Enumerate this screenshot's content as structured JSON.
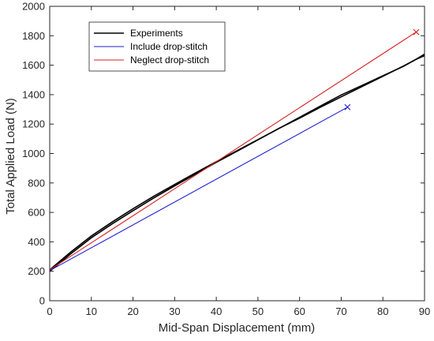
{
  "chart_data": {
    "type": "line",
    "title": "",
    "xlabel": "Mid-Span Displacement (mm)",
    "ylabel": "Total Applied Load (N)",
    "xlim": [
      0,
      90
    ],
    "ylim": [
      0,
      2000
    ],
    "xticks": [
      0,
      10,
      20,
      30,
      40,
      50,
      60,
      70,
      80,
      90
    ],
    "yticks": [
      0,
      200,
      400,
      600,
      800,
      1000,
      1200,
      1400,
      1600,
      1800,
      2000
    ],
    "grid": false,
    "legend_position": "top-left",
    "series": [
      {
        "name": "Experiments",
        "color": "#000000",
        "marker": "none",
        "x": [
          0,
          5,
          10,
          15,
          20,
          25,
          30,
          35,
          40,
          45,
          50,
          55,
          60,
          65,
          70,
          75,
          80,
          85,
          88,
          90
        ],
        "y": [
          210,
          330,
          440,
          535,
          625,
          710,
          790,
          868,
          945,
          1020,
          1095,
          1170,
          1240,
          1315,
          1385,
          1455,
          1525,
          1595,
          1640,
          1665
        ]
      },
      {
        "name": "Experiments",
        "color": "#000000",
        "marker": "none",
        "x": [
          0,
          5,
          10,
          15,
          20,
          25,
          30,
          35,
          40,
          45,
          50,
          55,
          60,
          65,
          70,
          75,
          80,
          85,
          88,
          90
        ],
        "y": [
          200,
          318,
          428,
          522,
          612,
          698,
          780,
          860,
          940,
          1016,
          1093,
          1170,
          1246,
          1323,
          1398,
          1463,
          1528,
          1593,
          1640,
          1675
        ]
      },
      {
        "name": "Include drop-stitch",
        "color": "#2020d0",
        "marker": "x-at-end",
        "x": [
          0,
          71.5
        ],
        "y": [
          205,
          1315
        ]
      },
      {
        "name": "Neglect drop-stitch",
        "color": "#d62020",
        "marker": "x-at-end",
        "x": [
          0,
          88
        ],
        "y": [
          210,
          1825
        ]
      }
    ],
    "legend": [
      {
        "label": "Experiments",
        "color": "#000000"
      },
      {
        "label": "Include drop-stitch",
        "color": "#2020d0"
      },
      {
        "label": "Neglect drop-stitch",
        "color": "#d62020"
      }
    ]
  }
}
